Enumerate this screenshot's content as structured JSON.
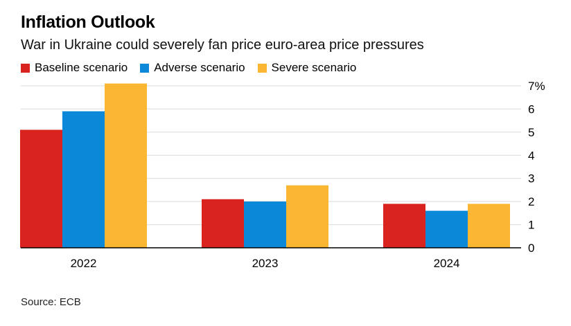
{
  "header": {
    "title": "Inflation Outlook",
    "subtitle": "War in Ukraine could severely fan price euro-area price pressures"
  },
  "source": "Source: ECB",
  "colors": {
    "baseline": "#d8231f",
    "adverse": "#0b88d8",
    "severe": "#fbb731",
    "grid": "#d9d9d9",
    "axis": "#000000"
  },
  "chart_data": {
    "type": "bar",
    "title": "Inflation Outlook",
    "subtitle": "War in Ukraine could severely fan price euro-area price pressures",
    "categories": [
      "2022",
      "2023",
      "2024"
    ],
    "series": [
      {
        "name": "Baseline scenario",
        "values": [
          5.1,
          2.1,
          1.9
        ]
      },
      {
        "name": "Adverse scenario",
        "values": [
          5.9,
          2.0,
          1.6
        ]
      },
      {
        "name": "Severe scenario",
        "values": [
          7.1,
          2.7,
          1.9
        ]
      }
    ],
    "ylim": [
      0,
      7
    ],
    "yticks": [
      "0",
      "1",
      "2",
      "3",
      "4",
      "5",
      "6",
      "7%"
    ],
    "y_axis_side": "right",
    "grid": true,
    "legend_placement": "top-left",
    "xlabel": "",
    "ylabel": ""
  }
}
